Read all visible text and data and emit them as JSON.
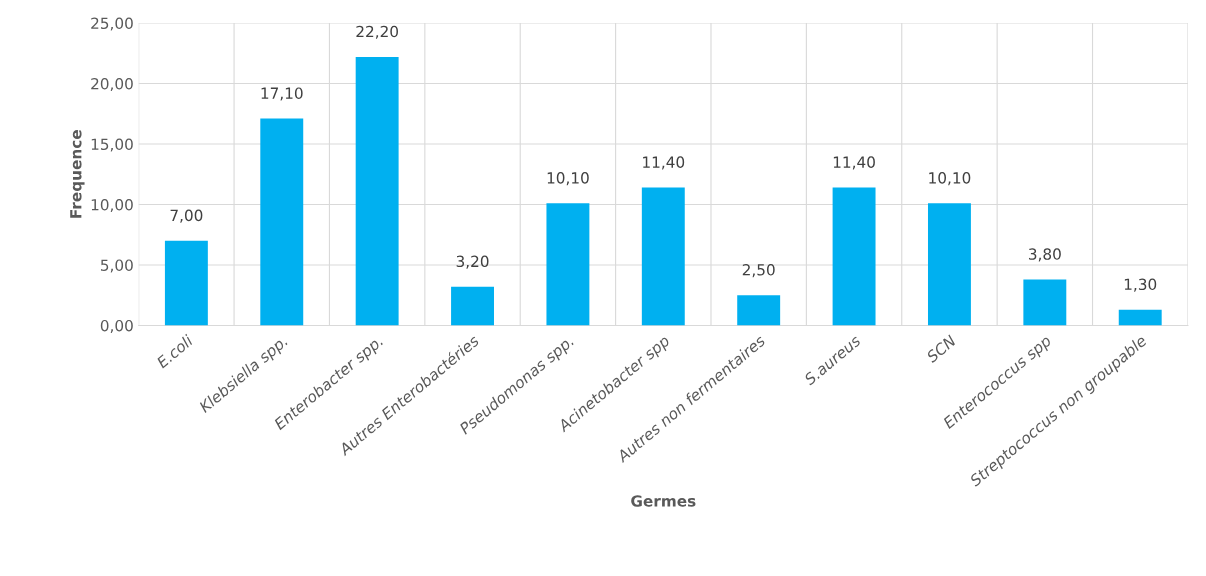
{
  "chart_data": {
    "type": "bar",
    "xlabel": "Germes",
    "ylabel": "Frequence",
    "categories": [
      "E.coli",
      "Klebsiella spp.",
      "Enterobacter spp.",
      "Autres Enterobactéries",
      "Pseudomonas spp.",
      "Acinetobacter spp",
      "Autres non fermentaires",
      "S.aureus",
      "SCN",
      "Enterococcus spp",
      "Streptococcus non groupable"
    ],
    "values": [
      7.0,
      17.1,
      22.2,
      3.2,
      10.1,
      11.4,
      2.5,
      11.4,
      10.1,
      3.8,
      1.3
    ],
    "value_labels": [
      "7,00",
      "17,10",
      "22,20",
      "3,20",
      "10,10",
      "11,40",
      "2,50",
      "11,40",
      "10,10",
      "3,80",
      "1,30"
    ],
    "color": "#00b0f0",
    "ylim": [
      0,
      25
    ],
    "yticks": [
      {
        "value": 0,
        "label": "0,00"
      },
      {
        "value": 5,
        "label": "5,00"
      },
      {
        "value": 10,
        "label": "10,00"
      },
      {
        "value": 15,
        "label": "15,00"
      },
      {
        "value": 20,
        "label": "20,00"
      },
      {
        "value": 25,
        "label": "25,00"
      }
    ],
    "grid": true,
    "legend": false
  }
}
